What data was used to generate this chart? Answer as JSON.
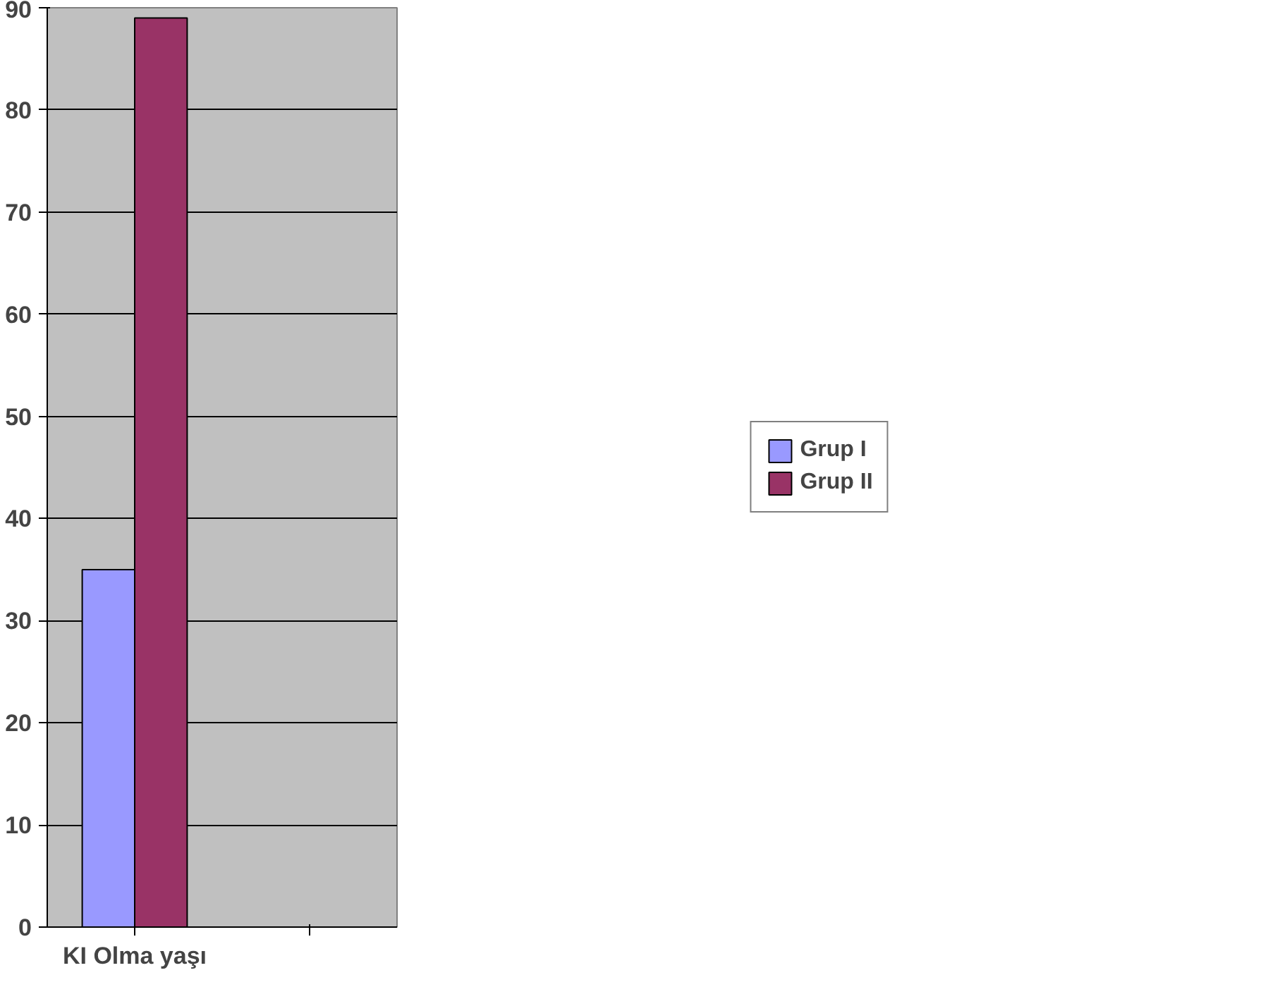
{
  "chart_data": {
    "type": "bar",
    "categories": [
      "KI Olma yaşı",
      null
    ],
    "series": [
      {
        "name": "Grup I",
        "color": "#9999ff",
        "values": [
          35,
          null
        ]
      },
      {
        "name": "Grup II",
        "color": "#993366",
        "values": [
          89,
          null
        ]
      }
    ],
    "ylim": [
      0,
      90
    ],
    "yticks": [
      0,
      10,
      20,
      30,
      40,
      50,
      60,
      70,
      80,
      90
    ],
    "grid": "y",
    "legend": "right"
  }
}
